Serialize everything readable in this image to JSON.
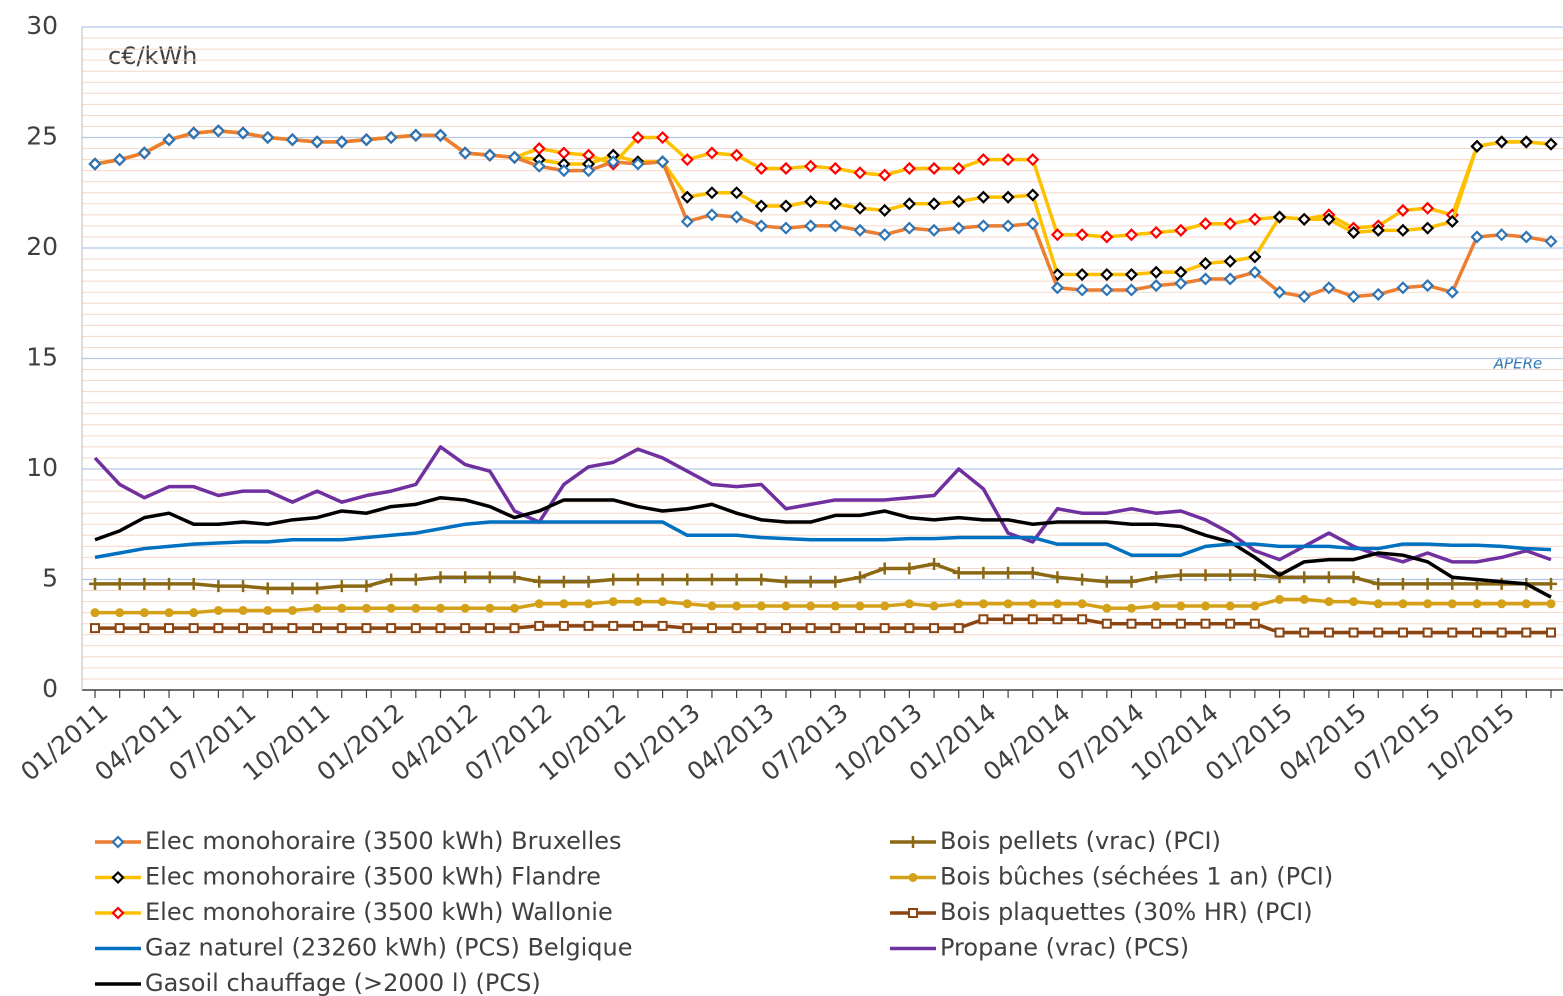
{
  "chart_data": {
    "type": "line",
    "unit_label": "c€/kWh",
    "watermark": "APERe",
    "categories": [
      "01/2011",
      null,
      null,
      "04/2011",
      null,
      null,
      "07/2011",
      null,
      null,
      "10/2011",
      null,
      null,
      "01/2012",
      null,
      null,
      "04/2012",
      null,
      null,
      "07/2012",
      null,
      null,
      "10/2012",
      null,
      null,
      "01/2013",
      null,
      null,
      "04/2013",
      null,
      null,
      "07/2013",
      null,
      null,
      "10/2013",
      null,
      null,
      "01/2014",
      null,
      null,
      "04/2014",
      null,
      null,
      "07/2014",
      null,
      null,
      "10/2014",
      null,
      null,
      "01/2015",
      null,
      null,
      "04/2015",
      null,
      null,
      "07/2015",
      null,
      null,
      "10/2015",
      null,
      null
    ],
    "ylim": [
      0,
      30
    ],
    "yticks": [
      0,
      5,
      10,
      15,
      20,
      25,
      30
    ],
    "grid": true,
    "series": [
      {
        "name": "Elec monohoraire (3500 kWh) Bruxelles",
        "color": "#ed7d31",
        "marker": "diamond",
        "marker_color": "#2e75b6",
        "values": [
          23.8,
          24.0,
          24.3,
          24.9,
          25.2,
          25.3,
          25.2,
          25.0,
          24.9,
          24.8,
          24.8,
          24.9,
          25.0,
          25.1,
          25.1,
          24.3,
          24.2,
          24.1,
          23.7,
          23.5,
          23.5,
          23.9,
          23.8,
          23.9,
          21.2,
          21.5,
          21.4,
          21.0,
          20.9,
          21.0,
          21.0,
          20.8,
          20.6,
          20.9,
          20.8,
          20.9,
          21.0,
          21.0,
          21.1,
          18.2,
          18.1,
          18.1,
          18.1,
          18.3,
          18.4,
          18.6,
          18.6,
          18.9,
          18.0,
          17.8,
          18.2,
          17.8,
          17.9,
          18.2,
          18.3,
          18.0,
          20.5,
          20.6,
          20.5,
          20.3
        ]
      },
      {
        "name": "Elec monohoraire (3500 kWh) Flandre",
        "color": "#ffc000",
        "marker": "diamond",
        "marker_color": "#000000",
        "values": [
          23.8,
          24.0,
          24.3,
          24.9,
          25.2,
          25.3,
          25.2,
          25.0,
          24.9,
          24.8,
          24.8,
          24.9,
          25.0,
          25.1,
          25.1,
          24.3,
          24.2,
          24.1,
          24.0,
          23.8,
          23.8,
          24.2,
          23.9,
          23.9,
          22.3,
          22.5,
          22.5,
          21.9,
          21.9,
          22.1,
          22.0,
          21.8,
          21.7,
          22.0,
          22.0,
          22.1,
          22.3,
          22.3,
          22.4,
          18.8,
          18.8,
          18.8,
          18.8,
          18.9,
          18.9,
          19.3,
          19.4,
          19.6,
          21.4,
          21.3,
          21.3,
          20.7,
          20.8,
          20.8,
          20.9,
          21.2,
          24.6,
          24.8,
          24.8,
          24.7
        ]
      },
      {
        "name": "Elec monohoraire (3500 kWh) Wallonie",
        "color": "#ffc000",
        "marker": "diamond",
        "marker_color": "#ff0000",
        "values": [
          23.8,
          24.0,
          24.3,
          24.9,
          25.2,
          25.3,
          25.2,
          25.0,
          24.9,
          24.8,
          24.8,
          24.9,
          25.0,
          25.1,
          25.1,
          24.3,
          24.2,
          24.1,
          24.5,
          24.3,
          24.2,
          23.8,
          25.0,
          25.0,
          24.0,
          24.3,
          24.2,
          23.6,
          23.6,
          23.7,
          23.6,
          23.4,
          23.3,
          23.6,
          23.6,
          23.6,
          24.0,
          24.0,
          24.0,
          20.6,
          20.6,
          20.5,
          20.6,
          20.7,
          20.8,
          21.1,
          21.1,
          21.3,
          21.4,
          21.3,
          21.5,
          20.9,
          21.0,
          21.7,
          21.8,
          21.5,
          24.6,
          24.8,
          24.8,
          24.7
        ]
      },
      {
        "name": "Gaz naturel (23260 kWh) (PCS) Belgique",
        "color": "#0070c0",
        "marker": "none",
        "values": [
          6.0,
          6.2,
          6.4,
          6.5,
          6.6,
          6.65,
          6.7,
          6.7,
          6.8,
          6.8,
          6.8,
          6.9,
          7.0,
          7.1,
          7.3,
          7.5,
          7.6,
          7.6,
          7.6,
          7.6,
          7.6,
          7.6,
          7.6,
          7.6,
          7.0,
          7.0,
          7.0,
          6.9,
          6.85,
          6.8,
          6.8,
          6.8,
          6.8,
          6.85,
          6.85,
          6.9,
          6.9,
          6.9,
          6.9,
          6.6,
          6.6,
          6.6,
          6.1,
          6.1,
          6.1,
          6.5,
          6.6,
          6.6,
          6.5,
          6.5,
          6.5,
          6.4,
          6.4,
          6.6,
          6.6,
          6.55,
          6.55,
          6.5,
          6.4,
          6.35
        ]
      },
      {
        "name": "Gasoil chauffage (>2000 l) (PCS)",
        "color": "#000000",
        "marker": "none",
        "values": [
          6.8,
          7.2,
          7.8,
          8.0,
          7.5,
          7.5,
          7.6,
          7.5,
          7.7,
          7.8,
          8.1,
          8.0,
          8.3,
          8.4,
          8.7,
          8.6,
          8.3,
          7.8,
          8.1,
          8.6,
          8.6,
          8.6,
          8.3,
          8.1,
          8.2,
          8.4,
          8.0,
          7.7,
          7.6,
          7.6,
          7.9,
          7.9,
          8.1,
          7.8,
          7.7,
          7.8,
          7.7,
          7.7,
          7.5,
          7.6,
          7.6,
          7.6,
          7.5,
          7.5,
          7.4,
          7.0,
          6.7,
          6.0,
          5.2,
          5.8,
          5.9,
          5.9,
          6.2,
          6.1,
          5.8,
          5.1,
          5.0,
          4.9,
          4.8,
          4.2
        ]
      },
      {
        "name": "Bois pellets (vrac) (PCI)",
        "color": "#8b6914",
        "marker": "plus",
        "marker_color": "#8b6914",
        "values": [
          4.8,
          4.8,
          4.8,
          4.8,
          4.8,
          4.7,
          4.7,
          4.6,
          4.6,
          4.6,
          4.7,
          4.7,
          5.0,
          5.0,
          5.1,
          5.1,
          5.1,
          5.1,
          4.9,
          4.9,
          4.9,
          5.0,
          5.0,
          5.0,
          5.0,
          5.0,
          5.0,
          5.0,
          4.9,
          4.9,
          4.9,
          5.1,
          5.5,
          5.5,
          5.7,
          5.3,
          5.3,
          5.3,
          5.3,
          5.1,
          5.0,
          4.9,
          4.9,
          5.1,
          5.2,
          5.2,
          5.2,
          5.2,
          5.1,
          5.1,
          5.1,
          5.1,
          4.8,
          4.8,
          4.8,
          4.8,
          4.8,
          4.8,
          4.8,
          4.8
        ]
      },
      {
        "name": "Bois bûches (séchées 1 an) (PCI)",
        "color": "#d4a017",
        "marker": "circle",
        "marker_color": "#d4a017",
        "values": [
          3.5,
          3.5,
          3.5,
          3.5,
          3.5,
          3.6,
          3.6,
          3.6,
          3.6,
          3.7,
          3.7,
          3.7,
          3.7,
          3.7,
          3.7,
          3.7,
          3.7,
          3.7,
          3.9,
          3.9,
          3.9,
          4.0,
          4.0,
          4.0,
          3.9,
          3.8,
          3.8,
          3.8,
          3.8,
          3.8,
          3.8,
          3.8,
          3.8,
          3.9,
          3.8,
          3.9,
          3.9,
          3.9,
          3.9,
          3.9,
          3.9,
          3.7,
          3.7,
          3.8,
          3.8,
          3.8,
          3.8,
          3.8,
          4.1,
          4.1,
          4.0,
          4.0,
          3.9,
          3.9,
          3.9,
          3.9,
          3.9,
          3.9,
          3.9,
          3.9
        ]
      },
      {
        "name": "Bois plaquettes (30% HR) (PCI)",
        "color": "#8b4513",
        "marker": "square",
        "marker_color": "#8b4513",
        "values": [
          2.8,
          2.8,
          2.8,
          2.8,
          2.8,
          2.8,
          2.8,
          2.8,
          2.8,
          2.8,
          2.8,
          2.8,
          2.8,
          2.8,
          2.8,
          2.8,
          2.8,
          2.8,
          2.9,
          2.9,
          2.9,
          2.9,
          2.9,
          2.9,
          2.8,
          2.8,
          2.8,
          2.8,
          2.8,
          2.8,
          2.8,
          2.8,
          2.8,
          2.8,
          2.8,
          2.8,
          3.2,
          3.2,
          3.2,
          3.2,
          3.2,
          3.0,
          3.0,
          3.0,
          3.0,
          3.0,
          3.0,
          3.0,
          2.6,
          2.6,
          2.6,
          2.6,
          2.6,
          2.6,
          2.6,
          2.6,
          2.6,
          2.6,
          2.6,
          2.6
        ]
      },
      {
        "name": "Propane (vrac) (PCS)",
        "color": "#7030a0",
        "marker": "none",
        "values": [
          10.5,
          9.3,
          8.7,
          9.2,
          9.2,
          8.8,
          9.0,
          9.0,
          8.5,
          9.0,
          8.5,
          8.8,
          9.0,
          9.3,
          11.0,
          10.2,
          9.9,
          8.1,
          7.6,
          9.3,
          10.1,
          10.3,
          10.9,
          10.5,
          9.9,
          9.3,
          9.2,
          9.3,
          8.2,
          8.4,
          8.6,
          8.6,
          8.6,
          8.7,
          8.8,
          10.0,
          9.1,
          7.1,
          6.7,
          8.2,
          8.0,
          8.0,
          8.2,
          8.0,
          8.1,
          7.7,
          7.1,
          6.3,
          5.9,
          6.5,
          7.1,
          6.5,
          6.1,
          5.8,
          6.2,
          5.8,
          5.8,
          6.0,
          6.3,
          5.9
        ]
      }
    ]
  }
}
